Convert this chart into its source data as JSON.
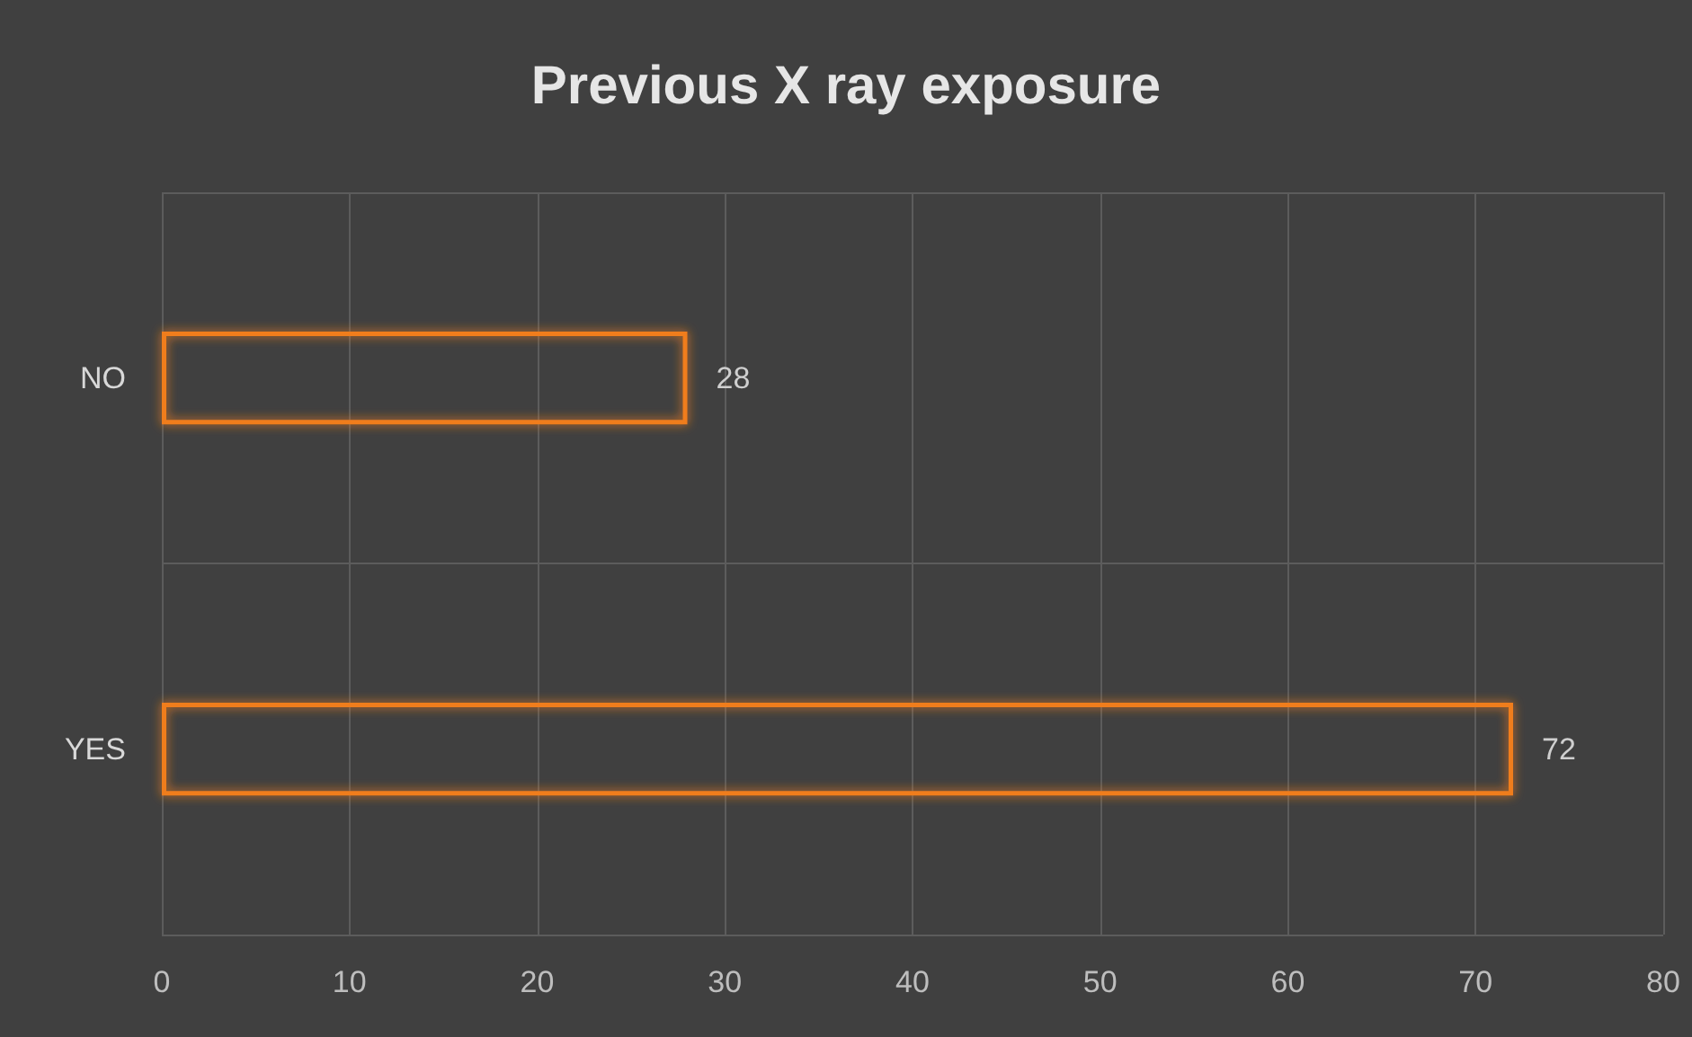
{
  "chart_data": {
    "type": "bar",
    "title": "Previous X ray exposure",
    "orientation": "horizontal",
    "categories": [
      "NO",
      "YES"
    ],
    "series": [
      {
        "color": "#f07d1e",
        "values": [
          28,
          72
        ]
      }
    ],
    "xlim": [
      0,
      80
    ],
    "xticks": [
      0,
      10,
      20,
      30,
      40,
      50,
      60,
      70,
      80
    ],
    "grid": true,
    "data_labels": true
  }
}
